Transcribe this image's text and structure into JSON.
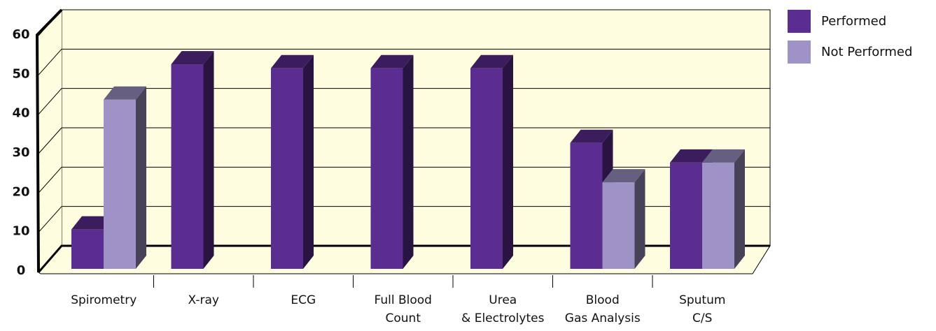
{
  "chart_data": {
    "type": "bar",
    "categories": [
      [
        "Spirometry"
      ],
      [
        "X-ray"
      ],
      [
        "ECG"
      ],
      [
        "Full Blood",
        "Count"
      ],
      [
        "Urea",
        "& Electrolytes"
      ],
      [
        "Blood",
        "Gas Analysis"
      ],
      [
        "Sputum",
        "C/S"
      ]
    ],
    "series": [
      {
        "name": "Performed",
        "color": "#5b2d90",
        "values": [
          10,
          52,
          51,
          51,
          51,
          32,
          27
        ]
      },
      {
        "name": "Not Performed",
        "color": "#9f92c6",
        "values": [
          43,
          null,
          null,
          null,
          null,
          22,
          27
        ]
      }
    ],
    "ylim": [
      0,
      60
    ],
    "yticks": [
      0,
      10,
      20,
      30,
      40,
      50,
      60
    ],
    "grid": true,
    "legend": "right"
  }
}
